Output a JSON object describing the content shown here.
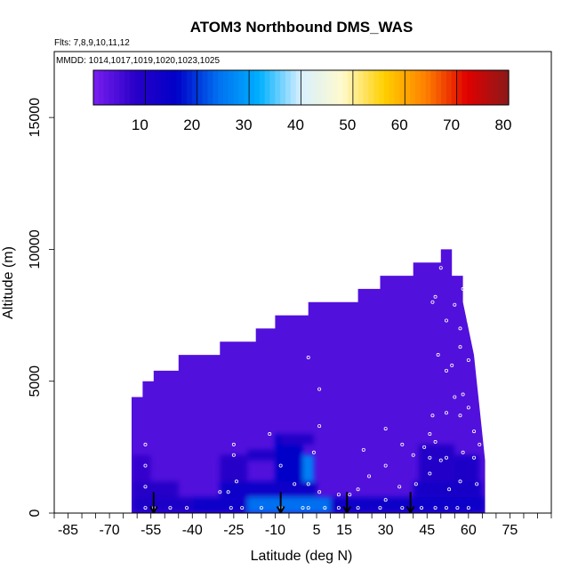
{
  "chart_data": {
    "type": "heatmap",
    "title": "ATOM3 Northbound DMS_WAS",
    "flights_label": "Flts: 7,8,9,10,11,12",
    "dates_label": "MMDD: 1014,1017,1019,1020,1023,1025",
    "xlabel": "Latitude (deg N)",
    "ylabel": "Altitude (m)",
    "xlim": [
      -90,
      90
    ],
    "ylim": [
      0,
      17500
    ],
    "x_ticks": [
      -85,
      -70,
      -55,
      -40,
      -25,
      -10,
      5,
      15,
      30,
      45,
      60,
      75
    ],
    "x_ticklabels": [
      "-85",
      "-70",
      "-55",
      "-40",
      "-25",
      "-10",
      "5",
      "15",
      "30",
      "45",
      "60",
      "75"
    ],
    "x_minor_step": 5,
    "y_ticks": [
      0,
      5000,
      10000,
      15000
    ],
    "y_ticklabels": [
      "0",
      "5000",
      "10000",
      "15000"
    ],
    "grid": false,
    "colorbar": {
      "range": [
        0,
        80
      ],
      "ticks": [
        10,
        20,
        30,
        40,
        50,
        60,
        70,
        80
      ],
      "ticklabels": [
        "10",
        "20",
        "30",
        "40",
        "50",
        "60",
        "70",
        "80"
      ],
      "colors": [
        "#7a1ff0",
        "#2a00c8",
        "#0000c8",
        "#0070f0",
        "#00b0ff",
        "#d8f0ff",
        "#fffacd",
        "#ffd000",
        "#ff8000",
        "#e00000",
        "#8b1a1a"
      ],
      "position": "top"
    },
    "profile_top": [
      [
        -62,
        0
      ],
      [
        -62,
        4400
      ],
      [
        -58,
        4400
      ],
      [
        -58,
        5000
      ],
      [
        -54,
        5000
      ],
      [
        -54,
        5400
      ],
      [
        -45,
        5400
      ],
      [
        -45,
        6000
      ],
      [
        -30,
        6000
      ],
      [
        -30,
        6500
      ],
      [
        -17,
        6500
      ],
      [
        -17,
        7000
      ],
      [
        -10,
        7000
      ],
      [
        -10,
        7500
      ],
      [
        2,
        7500
      ],
      [
        2,
        8000
      ],
      [
        20,
        8000
      ],
      [
        20,
        8500
      ],
      [
        28,
        8500
      ],
      [
        28,
        9000
      ],
      [
        40,
        9000
      ],
      [
        40,
        9500
      ],
      [
        50,
        9500
      ],
      [
        50,
        10000
      ],
      [
        54,
        10000
      ],
      [
        54,
        9000
      ],
      [
        58,
        9000
      ],
      [
        58,
        8000
      ],
      [
        60,
        7000
      ],
      [
        62,
        6000
      ],
      [
        63,
        5000
      ],
      [
        64,
        4000
      ],
      [
        65,
        3000
      ],
      [
        66,
        2000
      ],
      [
        66,
        0
      ]
    ],
    "background_value": 4,
    "cells": [
      {
        "lat": [
          -62,
          -40
        ],
        "alt": [
          0,
          600
        ],
        "value": 11
      },
      {
        "lat": [
          -40,
          -20
        ],
        "alt": [
          0,
          600
        ],
        "value": 13
      },
      {
        "lat": [
          -20,
          10
        ],
        "alt": [
          0,
          600
        ],
        "value": 24
      },
      {
        "lat": [
          10,
          25
        ],
        "alt": [
          0,
          600
        ],
        "value": 14
      },
      {
        "lat": [
          25,
          66
        ],
        "alt": [
          0,
          600
        ],
        "value": 13
      },
      {
        "lat": [
          -62,
          -45
        ],
        "alt": [
          600,
          1200
        ],
        "value": 9
      },
      {
        "lat": [
          -30,
          5
        ],
        "alt": [
          600,
          1200
        ],
        "value": 13
      },
      {
        "lat": [
          40,
          65
        ],
        "alt": [
          600,
          1200
        ],
        "value": 12
      },
      {
        "lat": [
          -62,
          -55
        ],
        "alt": [
          1200,
          2200
        ],
        "value": 7
      },
      {
        "lat": [
          -30,
          -20
        ],
        "alt": [
          1200,
          2200
        ],
        "value": 9
      },
      {
        "lat": [
          -10,
          0
        ],
        "alt": [
          1200,
          3000
        ],
        "value": 16
      },
      {
        "lat": [
          0,
          4
        ],
        "alt": [
          1200,
          2200
        ],
        "value": 26
      },
      {
        "lat": [
          -20,
          -10
        ],
        "alt": [
          2000,
          2400
        ],
        "value": 11
      },
      {
        "lat": [
          42,
          55
        ],
        "alt": [
          1200,
          2600
        ],
        "value": 10
      },
      {
        "lat": [
          55,
          64
        ],
        "alt": [
          1200,
          2200
        ],
        "value": 11
      },
      {
        "lat": [
          -8,
          4
        ],
        "alt": [
          2600,
          3000
        ],
        "value": 10
      }
    ],
    "arrows_lat": [
      -54,
      -8,
      16,
      39
    ],
    "point_samples": [
      [
        -57,
        200
      ],
      [
        -54,
        200
      ],
      [
        -48,
        200
      ],
      [
        -42,
        200
      ],
      [
        -26,
        200
      ],
      [
        -22,
        200
      ],
      [
        -15,
        200
      ],
      [
        -8,
        200
      ],
      [
        0,
        200
      ],
      [
        2,
        200
      ],
      [
        8,
        200
      ],
      [
        13,
        200
      ],
      [
        20,
        200
      ],
      [
        28,
        200
      ],
      [
        36,
        200
      ],
      [
        43,
        200
      ],
      [
        48,
        200
      ],
      [
        52,
        200
      ],
      [
        56,
        200
      ],
      [
        60,
        200
      ],
      [
        -57,
        1000
      ],
      [
        -30,
        800
      ],
      [
        -27,
        800
      ],
      [
        -24,
        1200
      ],
      [
        -3,
        1100
      ],
      [
        2,
        1100
      ],
      [
        6,
        800
      ],
      [
        13,
        700
      ],
      [
        17,
        700
      ],
      [
        30,
        500
      ],
      [
        35,
        1000
      ],
      [
        41,
        1100
      ],
      [
        46,
        1500
      ],
      [
        53,
        900
      ],
      [
        57,
        1200
      ],
      [
        63,
        1100
      ],
      [
        -57,
        1800
      ],
      [
        -57,
        2600
      ],
      [
        -58,
        5200
      ],
      [
        -25,
        2200
      ],
      [
        -25,
        2600
      ],
      [
        -12,
        3000
      ],
      [
        -8,
        1800
      ],
      [
        4,
        2300
      ],
      [
        6,
        3300
      ],
      [
        6,
        4700
      ],
      [
        2,
        5900
      ],
      [
        30,
        1800
      ],
      [
        36,
        2600
      ],
      [
        40,
        2200
      ],
      [
        46,
        3000
      ],
      [
        48,
        2700
      ],
      [
        52,
        2100
      ],
      [
        58,
        2300
      ],
      [
        47,
        3700
      ],
      [
        52,
        3800
      ],
      [
        57,
        3700
      ],
      [
        55,
        4400
      ],
      [
        58,
        4500
      ],
      [
        60,
        4000
      ],
      [
        52,
        5400
      ],
      [
        54,
        5600
      ],
      [
        49,
        6000
      ],
      [
        57,
        6300
      ],
      [
        60,
        5800
      ],
      [
        57,
        7000
      ],
      [
        52,
        7300
      ],
      [
        55,
        7900
      ],
      [
        58,
        8500
      ],
      [
        60,
        7300
      ],
      [
        48,
        8200
      ],
      [
        50,
        9300
      ],
      [
        47,
        8000
      ],
      [
        62,
        2100
      ],
      [
        62,
        3100
      ],
      [
        64,
        2600
      ],
      [
        46,
        2100
      ],
      [
        50,
        2000
      ],
      [
        44,
        2500
      ],
      [
        30,
        3200
      ],
      [
        24,
        1400
      ],
      [
        20,
        900
      ],
      [
        22,
        2400
      ]
    ]
  }
}
